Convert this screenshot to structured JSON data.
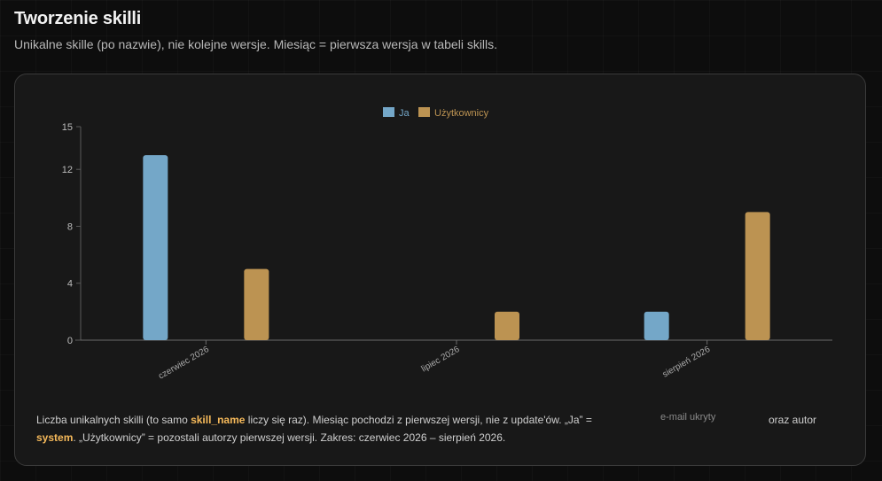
{
  "header": {
    "title": "Tworzenie skilli",
    "subtitle": "Unikalne skille (po nazwie), nie kolejne wersje. Miesiąc = pierwsza wersja w tabeli skills."
  },
  "footnote": {
    "part1": "Liczba unikalnych skilli (to samo ",
    "skill_name": "skill_name",
    "part2": " liczy się raz). Miesiąc pochodzi z pierwszej wersji, nie z update'ów. „Ja” = ",
    "system": "system",
    "part3": ". „Użytkownicy” = pozostali autorzy pierwszej wersji. Zakres: czerwiec 2026 – sierpień 2026.",
    "email_hidden": "e-mail ukryty",
    "and_author": "oraz autor"
  },
  "chart_data": {
    "type": "bar",
    "categories": [
      "czerwiec 2026",
      "lipiec 2026",
      "sierpień 2026"
    ],
    "series": [
      {
        "name": "Ja",
        "values": [
          13,
          0,
          2
        ],
        "color": "#74a7c8"
      },
      {
        "name": "Użytkownicy",
        "values": [
          5,
          2,
          9
        ],
        "color": "#bc9352"
      }
    ],
    "yticks": [
      0,
      4,
      8,
      12,
      15
    ],
    "ylim": [
      0,
      15
    ],
    "legend": "top-center",
    "grid": false
  }
}
